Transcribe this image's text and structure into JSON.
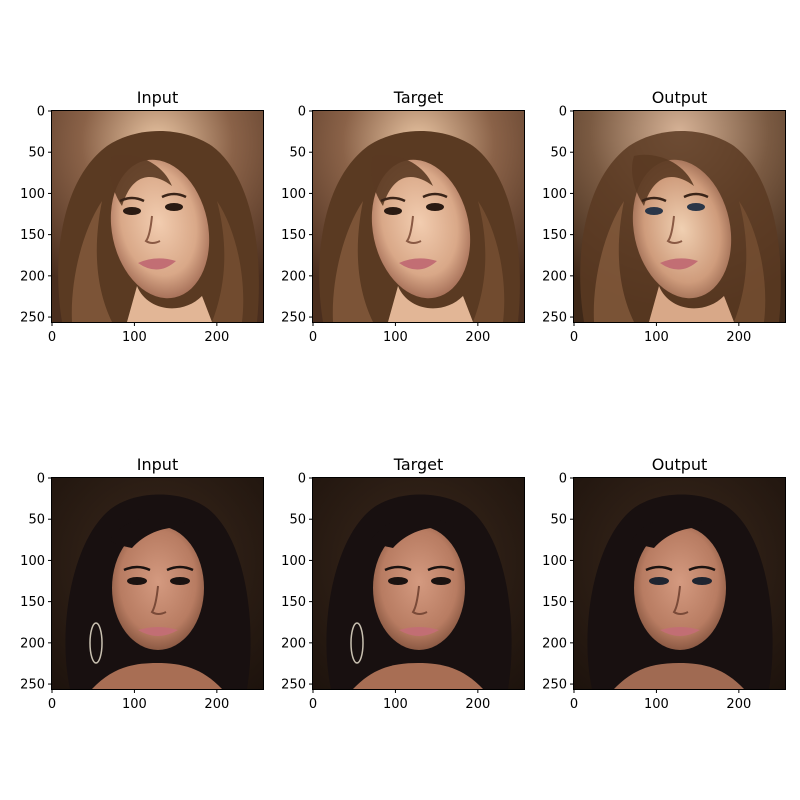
{
  "rows": [
    {
      "subject": "long-brown-hair-tilted-head",
      "panels": [
        {
          "title": "Input",
          "variant": "input"
        },
        {
          "title": "Target",
          "variant": "target"
        },
        {
          "title": "Output",
          "variant": "output"
        }
      ]
    },
    {
      "subject": "dark-hair-smiling-with-hoop-earrings",
      "panels": [
        {
          "title": "Input",
          "variant": "input"
        },
        {
          "title": "Target",
          "variant": "target"
        },
        {
          "title": "Output",
          "variant": "output"
        }
      ]
    }
  ],
  "y_tick_labels": [
    "0",
    "50",
    "100",
    "150",
    "200",
    "250"
  ],
  "x_tick_labels": [
    "0",
    "100",
    "200"
  ],
  "y_tick_values": [
    0,
    50,
    100,
    150,
    200,
    250
  ],
  "x_tick_values": [
    0,
    100,
    200
  ],
  "image_extent": 256,
  "colors": {
    "axis": "#000000",
    "row1_background": "#7a5640",
    "row1_hair": "#5a3a22",
    "row1_skin": "#e2b696",
    "row1_output_skin": "#d8a888",
    "row2_background": "#2a1c14",
    "row2_hair": "#181010",
    "row2_skin": "#c48a70",
    "row2_output_skin": "#c08468",
    "lips": "#c26e74"
  }
}
